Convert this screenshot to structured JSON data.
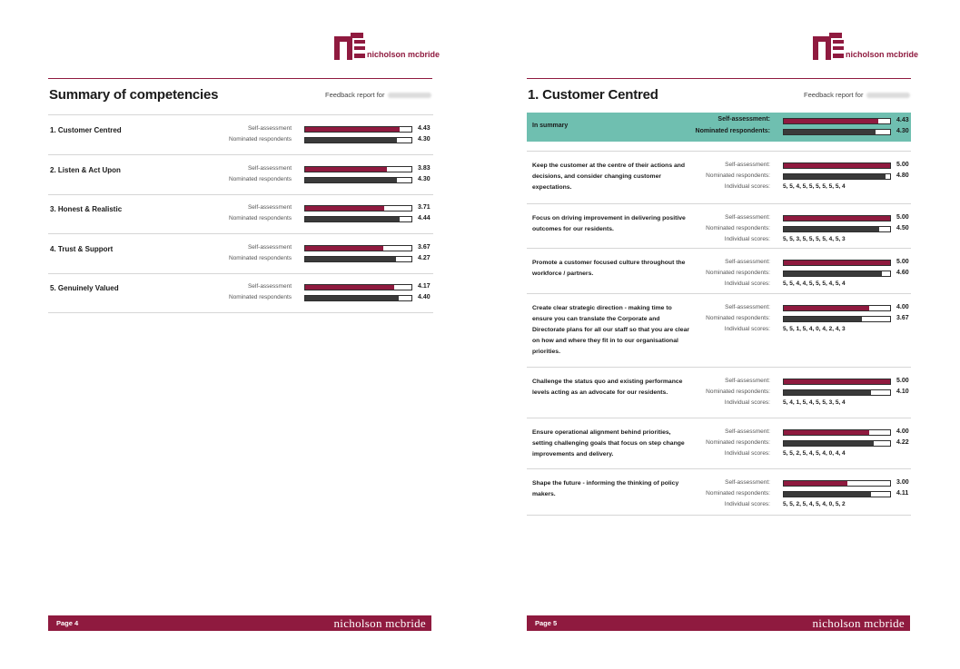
{
  "brand": {
    "logo_text": "nicholson mcbride",
    "accent": "#8f1a3f",
    "nominated_color": "#3a3a3a",
    "summary_bg": "#6fbfb0",
    "footer_brand": "nicholson mcbride"
  },
  "left": {
    "title": "Summary of competencies",
    "feedback_label": "Feedback report for",
    "self_label": "Self-assessment",
    "nom_label": "Nominated respondents",
    "competencies": [
      {
        "name": "1. Customer Centred",
        "self": "4.43",
        "nom": "4.30",
        "self_frac": 0.886,
        "nom_frac": 0.86
      },
      {
        "name": "2. Listen & Act Upon",
        "self": "3.83",
        "nom": "4.30",
        "self_frac": 0.766,
        "nom_frac": 0.86
      },
      {
        "name": "3. Honest & Realistic",
        "self": "3.71",
        "nom": "4.44",
        "self_frac": 0.742,
        "nom_frac": 0.888
      },
      {
        "name": "4. Trust & Support",
        "self": "3.67",
        "nom": "4.27",
        "self_frac": 0.734,
        "nom_frac": 0.854
      },
      {
        "name": "5. Genuinely Valued",
        "self": "4.17",
        "nom": "4.40",
        "self_frac": 0.834,
        "nom_frac": 0.88
      }
    ],
    "footer_page": "Page 4"
  },
  "right": {
    "title": "1. Customer Centred",
    "feedback_label": "Feedback report for",
    "summary": {
      "title": "In summary",
      "self_label": "Self-assessment:",
      "nom_label": "Nominated respondents:",
      "self": "4.43",
      "nom": "4.30",
      "self_frac": 0.886,
      "nom_frac": 0.86
    },
    "self_label": "Self-assessment:",
    "nom_label": "Nominated respondents:",
    "ind_label": "Individual scores:",
    "questions": [
      {
        "text": "Keep the customer at the centre of their actions and decisions, and consider changing customer expectations.",
        "self": "5.00",
        "nom": "4.80",
        "self_frac": 1.0,
        "nom_frac": 0.96,
        "scores": "5, 5, 4, 5, 5, 5, 5, 5, 5, 4"
      },
      {
        "text": "Focus on driving improvement in delivering positive outcomes for our residents.",
        "self": "5.00",
        "nom": "4.50",
        "self_frac": 1.0,
        "nom_frac": 0.9,
        "scores": "5, 5, 3, 5, 5, 5, 5, 4, 5, 3"
      },
      {
        "text": "Promote a customer focused culture throughout the workforce / partners.",
        "self": "5.00",
        "nom": "4.60",
        "self_frac": 1.0,
        "nom_frac": 0.92,
        "scores": "5, 5, 4, 4, 5, 5, 5, 4, 5, 4"
      },
      {
        "text": "Create clear strategic direction - making time to ensure you can translate the Corporate and Directorate plans for all our staff so that you are clear on how and where they fit in to our organisational priorities.",
        "self": "4.00",
        "nom": "3.67",
        "self_frac": 0.8,
        "nom_frac": 0.734,
        "scores": "5, 5, 1, 5, 4, 0, 4, 2, 4, 3"
      },
      {
        "text": "Challenge the status quo and existing performance levels acting as an advocate for our residents.",
        "self": "5.00",
        "nom": "4.10",
        "self_frac": 1.0,
        "nom_frac": 0.82,
        "scores": "5, 4, 1, 5, 4, 5, 5, 3, 5, 4"
      },
      {
        "text": "Ensure operational alignment behind priorities, setting challenging goals that focus on step change improvements and delivery.",
        "self": "4.00",
        "nom": "4.22",
        "self_frac": 0.8,
        "nom_frac": 0.844,
        "scores": "5, 5, 2, 5, 4, 5, 4, 0, 4, 4"
      },
      {
        "text": "Shape the future - informing the thinking of policy makers.",
        "self": "3.00",
        "nom": "4.11",
        "self_frac": 0.6,
        "nom_frac": 0.822,
        "scores": "5, 5, 2, 5, 4, 5, 4, 0, 5, 2"
      }
    ],
    "footer_page": "Page 5"
  }
}
